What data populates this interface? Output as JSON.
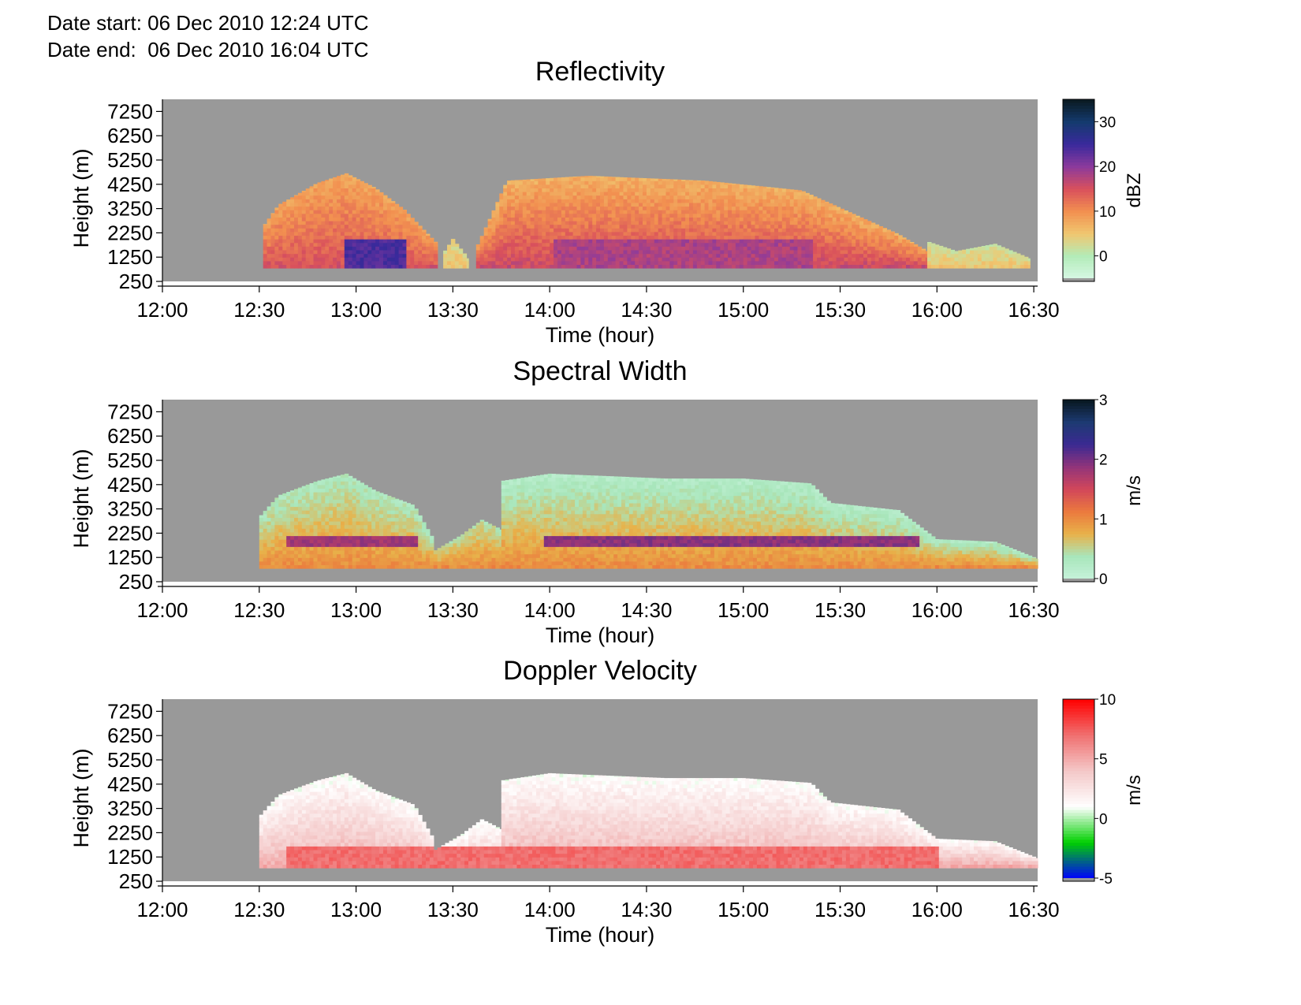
{
  "header": {
    "date_start": "Date start: 06 Dec 2010 12:24 UTC",
    "date_end": "Date end:  06 Dec 2010 16:04 UTC"
  },
  "colors": {
    "background_missing": "#999999",
    "reflectivity_scale": [
      "#d6f7e4",
      "#b3ecb8",
      "#f0c770",
      "#f29050",
      "#d9505c",
      "#8c3a9c",
      "#3a2a9c",
      "#143a6e",
      "#0a1a20"
    ],
    "spectral_scale": [
      "#c6f2da",
      "#a8e6bb",
      "#e8b24a",
      "#eb7a3e",
      "#d2475a",
      "#92347a",
      "#3b2a92",
      "#1d3a72",
      "#081820"
    ],
    "velocity_scale": [
      "#0000ff",
      "#00d000",
      "#ffffff",
      "#f4c8c8",
      "#f07070",
      "#ff0000"
    ]
  },
  "chart_data": [
    {
      "type": "heatmap",
      "title": "Reflectivity",
      "xlabel": "Time (hour)",
      "ylabel": "Height (m)",
      "x_ticks": [
        "12:00",
        "12:30",
        "13:00",
        "13:30",
        "14:00",
        "14:30",
        "15:00",
        "15:30",
        "16:00",
        "16:30"
      ],
      "y_ticks": [
        "250",
        "1250",
        "2250",
        "3250",
        "4250",
        "5250",
        "6250",
        "7250"
      ],
      "x_range_hours": [
        12.0,
        16.52
      ],
      "y_range_m": [
        250,
        7750
      ],
      "colorbar": {
        "label": "dBZ",
        "ticks": [
          "0",
          "10",
          "20",
          "30"
        ],
        "tick_values": [
          0,
          10,
          20,
          30
        ],
        "range": [
          -5,
          35
        ]
      },
      "echo_regions": [
        {
          "t0": 12.52,
          "t1": 13.42,
          "base": 800,
          "top_profile": [
            [
              12.52,
              2500
            ],
            [
              12.6,
              3400
            ],
            [
              12.8,
              4300
            ],
            [
              12.95,
              4700
            ],
            [
              13.1,
              4100
            ],
            [
              13.25,
              3200
            ],
            [
              13.42,
              1800
            ]
          ],
          "value_low": 15,
          "value_high": 8
        },
        {
          "t0": 13.45,
          "t1": 13.58,
          "base": 800,
          "top_profile": [
            [
              13.45,
              1400
            ],
            [
              13.5,
              2000
            ],
            [
              13.58,
              1200
            ]
          ],
          "value_low": 5,
          "value_high": 3
        },
        {
          "t0": 13.62,
          "t1": 15.95,
          "base": 800,
          "top_profile": [
            [
              13.62,
              1600
            ],
            [
              13.78,
              4400
            ],
            [
              14.2,
              4600
            ],
            [
              14.8,
              4400
            ],
            [
              15.3,
              4000
            ],
            [
              15.55,
              3100
            ],
            [
              15.8,
              2200
            ],
            [
              15.95,
              1500
            ]
          ],
          "value_low": 16,
          "value_high": 7
        },
        {
          "t0": 15.95,
          "t1": 16.48,
          "base": 800,
          "top_profile": [
            [
              15.95,
              1900
            ],
            [
              16.1,
              1500
            ],
            [
              16.3,
              1800
            ],
            [
              16.48,
              1200
            ]
          ],
          "value_low": 5,
          "value_high": 2
        }
      ],
      "strong_cores": [
        {
          "t0": 12.93,
          "t1": 13.25,
          "h0": 800,
          "h1": 2000,
          "value": 24
        },
        {
          "t0": 14.0,
          "t1": 15.35,
          "h0": 800,
          "h1": 2000,
          "value": 18
        }
      ]
    },
    {
      "type": "heatmap",
      "title": "Spectral Width",
      "xlabel": "Time (hour)",
      "ylabel": "Height (m)",
      "x_ticks": [
        "12:00",
        "12:30",
        "13:00",
        "13:30",
        "14:00",
        "14:30",
        "15:00",
        "15:30",
        "16:00",
        "16:30"
      ],
      "y_ticks": [
        "250",
        "1250",
        "2250",
        "3250",
        "4250",
        "5250",
        "6250",
        "7250"
      ],
      "x_range_hours": [
        12.0,
        16.52
      ],
      "y_range_m": [
        250,
        7750
      ],
      "colorbar": {
        "label": "m/s",
        "ticks": [
          "0",
          "1",
          "2",
          "3"
        ],
        "tick_values": [
          0,
          1,
          2,
          3
        ],
        "range": [
          0,
          3
        ]
      },
      "echo_regions": [
        {
          "t0": 12.5,
          "t1": 13.4,
          "base": 800,
          "top_profile": [
            [
              12.5,
              2900
            ],
            [
              12.6,
              3800
            ],
            [
              12.8,
              4400
            ],
            [
              12.95,
              4700
            ],
            [
              13.1,
              4000
            ],
            [
              13.3,
              3400
            ],
            [
              13.4,
              2000
            ]
          ],
          "value_low": 1.0,
          "value_high": 0.3
        },
        {
          "t0": 13.4,
          "t1": 13.8,
          "base": 800,
          "top_profile": [
            [
              13.4,
              1500
            ],
            [
              13.55,
              2200
            ],
            [
              13.65,
              2800
            ],
            [
              13.8,
              2200
            ]
          ],
          "value_low": 1.0,
          "value_high": 0.4
        },
        {
          "t0": 13.75,
          "t1": 16.52,
          "base": 800,
          "top_profile": [
            [
              13.75,
              4400
            ],
            [
              14.0,
              4700
            ],
            [
              14.6,
              4500
            ],
            [
              15.0,
              4500
            ],
            [
              15.35,
              4300
            ],
            [
              15.45,
              3500
            ],
            [
              15.8,
              3200
            ],
            [
              16.0,
              2000
            ],
            [
              16.3,
              1900
            ],
            [
              16.52,
              1200
            ]
          ],
          "value_low": 1.0,
          "value_high": 0.2
        }
      ],
      "strong_cores": [
        {
          "t0": 12.62,
          "t1": 13.3,
          "h0": 1700,
          "h1": 2150,
          "value": 1.8
        },
        {
          "t0": 13.95,
          "t1": 15.9,
          "h0": 1700,
          "h1": 2150,
          "value": 1.9
        }
      ]
    },
    {
      "type": "heatmap",
      "title": "Doppler Velocity",
      "xlabel": "Time (hour)",
      "ylabel": "Height (m)",
      "x_ticks": [
        "12:00",
        "12:30",
        "13:00",
        "13:30",
        "14:00",
        "14:30",
        "15:00",
        "15:30",
        "16:00",
        "16:30"
      ],
      "y_ticks": [
        "250",
        "1250",
        "2250",
        "3250",
        "4250",
        "5250",
        "6250",
        "7250"
      ],
      "x_range_hours": [
        12.0,
        16.52
      ],
      "y_range_m": [
        250,
        7750
      ],
      "colorbar": {
        "label": "m/s",
        "ticks": [
          "-5",
          "0",
          "5",
          "10"
        ],
        "tick_values": [
          -5,
          0,
          5,
          10
        ],
        "range": [
          -5,
          10
        ]
      },
      "echo_regions": [
        {
          "t0": 12.5,
          "t1": 13.4,
          "base": 800,
          "top_profile": [
            [
              12.5,
              2900
            ],
            [
              12.6,
              3800
            ],
            [
              12.8,
              4400
            ],
            [
              12.95,
              4700
            ],
            [
              13.1,
              4000
            ],
            [
              13.3,
              3400
            ],
            [
              13.4,
              2000
            ]
          ],
          "value_low": 5,
          "value_high": 1
        },
        {
          "t0": 13.4,
          "t1": 13.8,
          "base": 800,
          "top_profile": [
            [
              13.4,
              1500
            ],
            [
              13.55,
              2200
            ],
            [
              13.65,
              2800
            ],
            [
              13.8,
              2200
            ]
          ],
          "value_low": 4,
          "value_high": 1
        },
        {
          "t0": 13.75,
          "t1": 16.52,
          "base": 800,
          "top_profile": [
            [
              13.75,
              4400
            ],
            [
              14.0,
              4700
            ],
            [
              14.6,
              4500
            ],
            [
              15.0,
              4500
            ],
            [
              15.35,
              4300
            ],
            [
              15.45,
              3500
            ],
            [
              15.8,
              3200
            ],
            [
              16.0,
              2000
            ],
            [
              16.3,
              1900
            ],
            [
              16.52,
              1200
            ]
          ],
          "value_low": 5,
          "value_high": 1
        }
      ],
      "strong_cores": [
        {
          "t0": 12.62,
          "t1": 16.0,
          "h0": 800,
          "h1": 1700,
          "value": 7
        }
      ]
    }
  ]
}
